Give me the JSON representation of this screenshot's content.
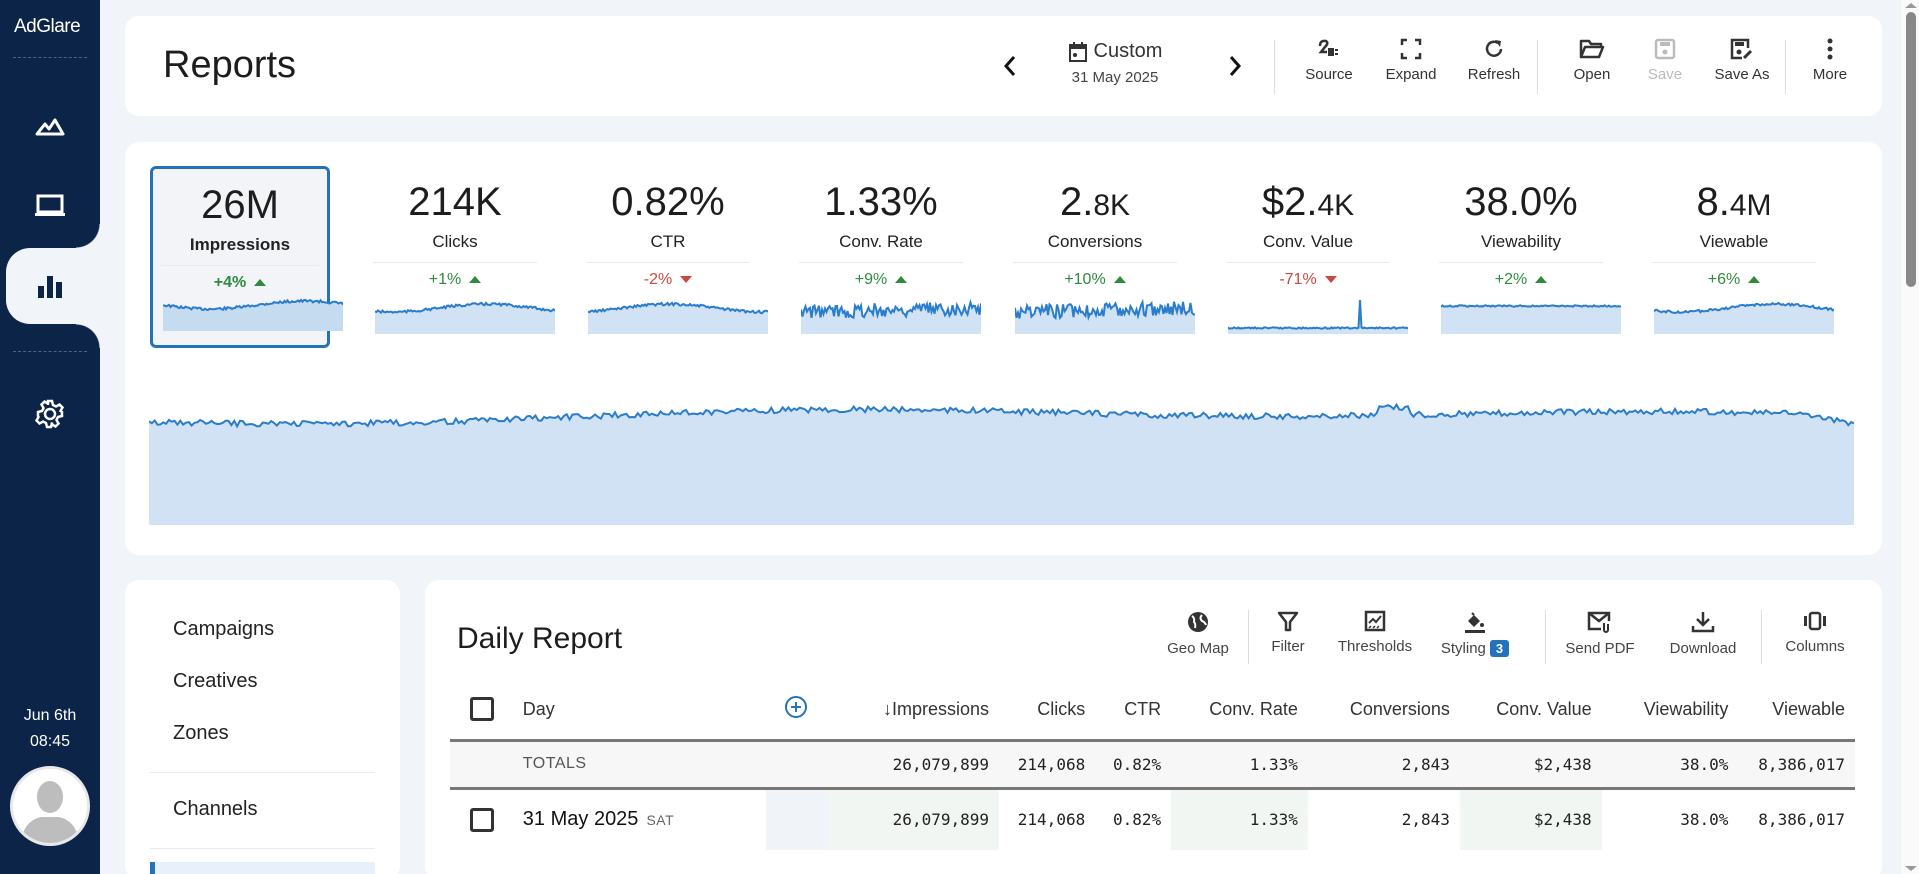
{
  "app": {
    "logo": "AdGlare",
    "clock_date": "Jun 6th",
    "clock_time": "08:45"
  },
  "sidebar": {
    "items": [
      {
        "name": "campaigns-nav",
        "icon": "mountains-icon"
      },
      {
        "name": "creatives-nav",
        "icon": "laptop-icon"
      },
      {
        "name": "reports-nav",
        "icon": "bar-chart-icon",
        "active": true
      },
      {
        "name": "settings-nav",
        "icon": "gear-icon"
      }
    ]
  },
  "header": {
    "title": "Reports",
    "date_range": "Custom",
    "date_value": "31 May 2025",
    "buttons": {
      "source": "Source",
      "expand": "Expand",
      "refresh": "Refresh",
      "open": "Open",
      "save": "Save",
      "save_as": "Save As",
      "more": "More"
    }
  },
  "metrics": [
    {
      "value": "26M",
      "value_small": "",
      "label": "Impressions",
      "delta": "+4%",
      "dir": "up",
      "selected": true
    },
    {
      "value": "214K",
      "value_small": "",
      "label": "Clicks",
      "delta": "+1%",
      "dir": "up"
    },
    {
      "value": "0.82%",
      "value_small": "",
      "label": "CTR",
      "delta": "-2%",
      "dir": "down"
    },
    {
      "value": "1.33%",
      "value_small": "",
      "label": "Conv. Rate",
      "delta": "+9%",
      "dir": "up"
    },
    {
      "value": "2.",
      "value_small": "8K",
      "label": "Conversions",
      "delta": "+10%",
      "dir": "up"
    },
    {
      "value": "$2.",
      "value_small": "4K",
      "label": "Conv. Value",
      "delta": "-71%",
      "dir": "down"
    },
    {
      "value": "38.0%",
      "value_small": "",
      "label": "Viewability",
      "delta": "+2%",
      "dir": "up"
    },
    {
      "value": "8.",
      "value_small": "4M",
      "label": "Viewable",
      "delta": "+6%",
      "dir": "up"
    }
  ],
  "colors": {
    "accent": "#2273ba",
    "sidebar": "#0c2448",
    "up": "#2f8a3e",
    "down": "#c9483f",
    "fill": "#d0e2f3",
    "line": "#2a7ccc"
  },
  "left_panel": {
    "items": [
      "Campaigns",
      "Creatives",
      "Zones",
      "Channels"
    ]
  },
  "report": {
    "title": "Daily Report",
    "tools": {
      "geo_map": "Geo Map",
      "filter": "Filter",
      "thresholds": "Thresholds",
      "styling": "Styling",
      "styling_count": "3",
      "send_pdf": "Send PDF",
      "download": "Download",
      "columns": "Columns"
    },
    "columns": [
      "Day",
      "↓Impressions",
      "Clicks",
      "CTR",
      "Conv. Rate",
      "Conversions",
      "Conv. Value",
      "Viewability",
      "Viewable"
    ],
    "totals": {
      "label": "TOTALS",
      "values": [
        "26,079,899",
        "214,068",
        "0.82%",
        "1.33%",
        "2,843",
        "$2,438",
        "38.0%",
        "8,386,017"
      ]
    },
    "rows": [
      {
        "day": "31 May 2025",
        "dow": "SAT",
        "values": [
          "26,079,899",
          "214,068",
          "0.82%",
          "1.33%",
          "2,843",
          "$2,438",
          "38.0%",
          "8,386,017"
        ]
      }
    ]
  }
}
